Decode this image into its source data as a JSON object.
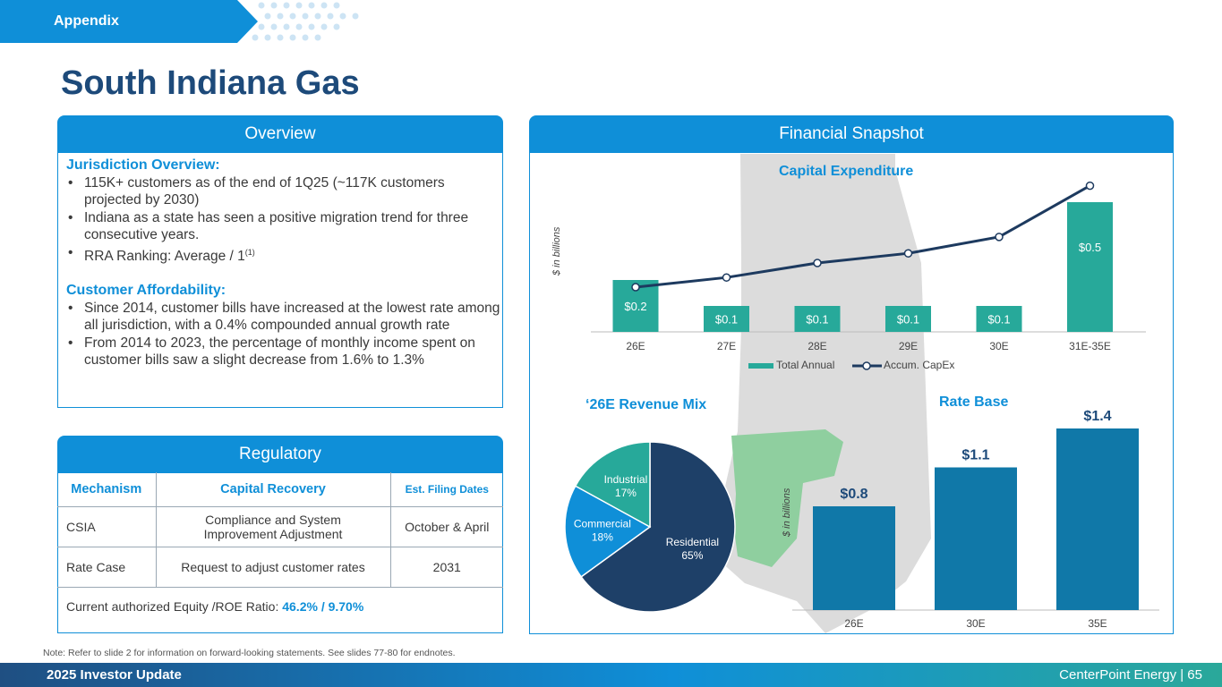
{
  "header": {
    "tab_label": "Appendix",
    "title": "South Indiana Gas"
  },
  "overview": {
    "title": "Overview",
    "jurisdiction_heading": "Jurisdiction Overview:",
    "jurisdiction_items": [
      "115K+ customers as of the end of 1Q25 (~117K customers projected by 2030)",
      "Indiana as a state has seen a positive migration trend for three consecutive years.",
      "RRA Ranking: Average / 1"
    ],
    "rra_footnote": "(1)",
    "affordability_heading": "Customer Affordability:",
    "affordability_items": [
      "Since 2014, customer bills have increased at the lowest rate among all jurisdiction, with a 0.4% compounded annual growth rate",
      "From 2014 to 2023, the percentage of monthly income spent on customer bills saw a slight decrease from 1.6% to 1.3%"
    ]
  },
  "regulatory": {
    "title": "Regulatory",
    "columns": [
      "Mechanism",
      "Capital Recovery",
      "Est. Filing Dates"
    ],
    "rows": [
      [
        "CSIA",
        "Compliance and System Improvement Adjustment",
        "October & April"
      ],
      [
        "Rate Case",
        "Request to adjust customer rates",
        "2031"
      ]
    ],
    "equity_label": "Current authorized Equity /ROE Ratio:",
    "equity_value": "46.2% / 9.70%"
  },
  "financial": {
    "title": "Financial Snapshot",
    "axis_note": "$ in billions"
  },
  "chart_data": [
    {
      "type": "bar",
      "title": "Capital Expenditure",
      "ylabel": "$ in billions",
      "categories": [
        "26E",
        "27E",
        "28E",
        "29E",
        "30E",
        "31E-35E"
      ],
      "series": [
        {
          "name": "Total Annual",
          "type": "bar",
          "values": [
            0.2,
            0.1,
            0.1,
            0.1,
            0.1,
            0.5
          ],
          "labels": [
            "$0.2",
            "$0.1",
            "$0.1",
            "$0.1",
            "$0.1",
            "$0.5"
          ],
          "color": "#27a99a"
        },
        {
          "name": "Accum. CapEx",
          "type": "line",
          "values": [
            0.2,
            0.3,
            0.45,
            0.55,
            0.72,
            1.25
          ],
          "color": "#1d3a5f"
        }
      ]
    },
    {
      "type": "pie",
      "title": "‘26E Revenue Mix",
      "slices": [
        {
          "label": "Residential",
          "pct_label": "65%",
          "value": 65,
          "color": "#1e4068"
        },
        {
          "label": "Commercial",
          "pct_label": "18%",
          "value": 18,
          "color": "#0f8fd8"
        },
        {
          "label": "Industrial",
          "pct_label": "17%",
          "value": 17,
          "color": "#27a99a"
        }
      ]
    },
    {
      "type": "bar",
      "title": "Rate Base",
      "ylabel": "$ in billions",
      "categories": [
        "26E",
        "30E",
        "35E"
      ],
      "values": [
        0.8,
        1.1,
        1.4
      ],
      "labels": [
        "$0.8",
        "$1.1",
        "$1.4"
      ],
      "color": "#1078a8"
    }
  ],
  "note": "Note: Refer to slide 2 for information on forward-looking statements. See slides 77-80 for endnotes.",
  "footer": {
    "left": "2025 Investor Update",
    "right": "CenterPoint Energy | 65"
  },
  "colors": {
    "brand_blue": "#0f8fd8",
    "title_navy": "#1d4a7a",
    "teal": "#27a99a",
    "navy": "#1d3a5f"
  }
}
